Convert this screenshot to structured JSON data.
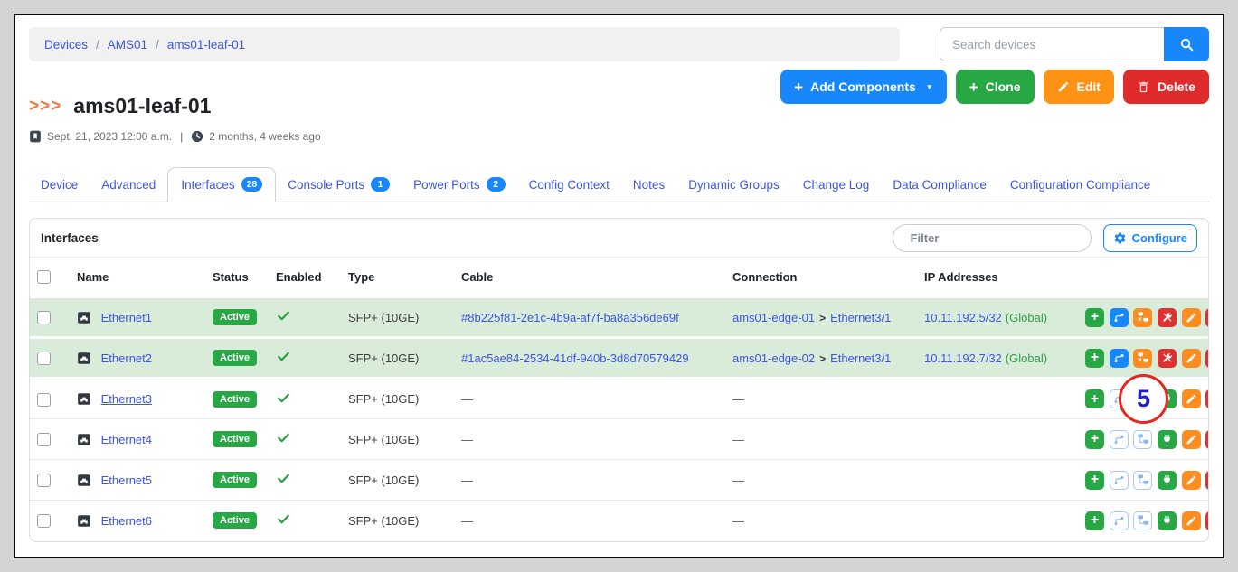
{
  "breadcrumb": {
    "items": [
      "Devices",
      "AMS01",
      "ams01-leaf-01"
    ],
    "separator": "/"
  },
  "search": {
    "placeholder": "Search devices"
  },
  "icons": {
    "caret_down": "▼"
  },
  "page_actions": {
    "add_components": "Add Components",
    "clone": "Clone",
    "edit": "Edit",
    "delete": "Delete"
  },
  "device": {
    "chevrons": ">>>",
    "title": "ams01-leaf-01",
    "created": "Sept. 21, 2023 12:00 a.m.",
    "meta_separator": "|",
    "last_updated": "2 months, 4 weeks ago"
  },
  "tabs": [
    {
      "label": "Device"
    },
    {
      "label": "Advanced"
    },
    {
      "label": "Interfaces",
      "badge": "28",
      "active": true
    },
    {
      "label": "Console Ports",
      "badge": "1"
    },
    {
      "label": "Power Ports",
      "badge": "2"
    },
    {
      "label": "Config Context"
    },
    {
      "label": "Notes"
    },
    {
      "label": "Dynamic Groups"
    },
    {
      "label": "Change Log"
    },
    {
      "label": "Data Compliance"
    },
    {
      "label": "Configuration Compliance"
    }
  ],
  "panel": {
    "title": "Interfaces",
    "filter_placeholder": "Filter",
    "configure_label": "Configure"
  },
  "table": {
    "columns": {
      "name": "Name",
      "status": "Status",
      "enabled": "Enabled",
      "type": "Type",
      "cable": "Cable",
      "connection": "Connection",
      "ip": "IP Addresses"
    },
    "empty_value": "—",
    "connection_separator": ">",
    "rows": [
      {
        "name": "Ethernet1",
        "status": "Active",
        "enabled": true,
        "type": "SFP+ (10GE)",
        "cable": "#8b225f81-2e1c-4b9a-af7f-ba8a356de69f",
        "connection": {
          "device": "ams01-edge-01",
          "port": "Ethernet3/1"
        },
        "ip": "10.11.192.5/32",
        "ip_scope": "(Global)",
        "connected": true,
        "highlight": true
      },
      {
        "name": "Ethernet2",
        "status": "Active",
        "enabled": true,
        "type": "SFP+ (10GE)",
        "cable": "#1ac5ae84-2534-41df-940b-3d8d70579429",
        "connection": {
          "device": "ams01-edge-02",
          "port": "Ethernet3/1"
        },
        "ip": "10.11.192.7/32",
        "ip_scope": "(Global)",
        "connected": true,
        "highlight": true
      },
      {
        "name": "Ethernet3",
        "status": "Active",
        "enabled": true,
        "type": "SFP+ (10GE)",
        "connected": false,
        "underlined": true,
        "annotation": "5"
      },
      {
        "name": "Ethernet4",
        "status": "Active",
        "enabled": true,
        "type": "SFP+ (10GE)",
        "connected": false
      },
      {
        "name": "Ethernet5",
        "status": "Active",
        "enabled": true,
        "type": "SFP+ (10GE)",
        "connected": false
      },
      {
        "name": "Ethernet6",
        "status": "Active",
        "enabled": true,
        "type": "SFP+ (10GE)",
        "connected": false
      }
    ]
  },
  "colors": {
    "accent_blue": "#1787fb",
    "link_blue": "#3d55e6",
    "success_green": "#28a745",
    "warning_orange": "#fd8c21",
    "danger_red": "#dc3232",
    "row_highlight": "#d9ecd9",
    "annotation_red": "#e8251f",
    "annotation_text": "#1d1dcf"
  }
}
